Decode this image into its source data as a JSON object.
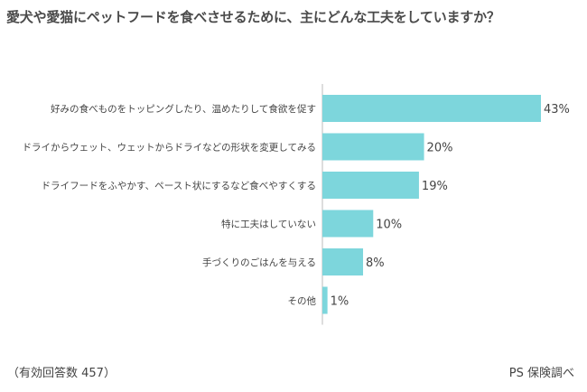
{
  "title": "愛犬や愛猫にペットフードを食べさせるために、主にどんな工夫をしていますか？",
  "footnote": "（有効回答数 457）",
  "source": "PS 保険調べ",
  "colors": {
    "bar": "#7dd6dc",
    "axis": "#bbbbbb",
    "text": "#444444"
  },
  "chart_data": {
    "type": "bar",
    "orientation": "horizontal",
    "categories": [
      "好みの食べものをトッピングしたり、温めたりして食欲を促す",
      "ドライからウェット、ウェットからドライなどの形状を変更してみる",
      "ドライフードをふやかす、ペースト状にするなど食べやすくする",
      "特に工夫はしていない",
      "手づくりのごはんを与える",
      "その他"
    ],
    "values": [
      43,
      20,
      19,
      10,
      8,
      1
    ],
    "value_labels": [
      "43%",
      "20%",
      "19%",
      "10%",
      "8%",
      "1%"
    ],
    "xlim": [
      0,
      43
    ],
    "grid": false,
    "legend": "none"
  }
}
